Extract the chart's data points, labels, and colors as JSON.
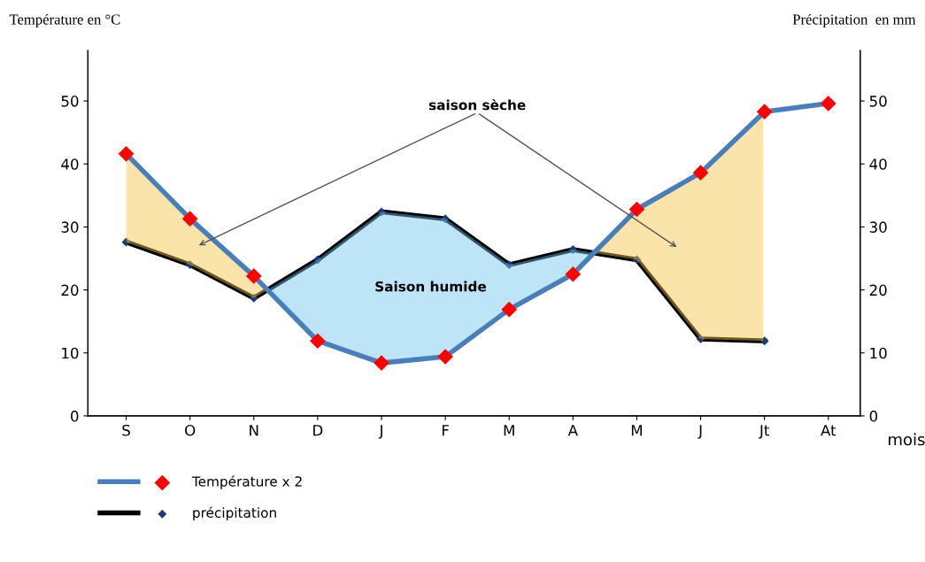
{
  "chart_data": {
    "type": "line",
    "categories": [
      "S",
      "O",
      "N",
      "D",
      "J",
      "F",
      "M",
      "A",
      "M",
      "J",
      "Jt",
      "At"
    ],
    "series": [
      {
        "name": "Température x 2",
        "color": "#4a7ebb",
        "colors": [
          "#ff0000",
          "#ff0000",
          "#ff0000",
          "#ff0000",
          "#ff0000",
          "#ff0000",
          "#ff0000",
          "#ff0000",
          "#ff0000",
          "#ff0000",
          "#ff0000",
          "#ff0000"
        ],
        "marker": "diamond",
        "values": [
          41.6,
          31.3,
          22.2,
          11.9,
          8.4,
          9.4,
          16.9,
          22.5,
          32.8,
          38.6,
          48.3,
          49.6
        ]
      },
      {
        "name": "précipitation",
        "color": "#000000",
        "colors": [
          "#1f3a6e",
          "#1f3a6e",
          "#1f3a6e",
          "#1f3a6e",
          "#1f3a6e",
          "#1f3a6e",
          "#1f3a6e",
          "#1f3a6e",
          "#1f3a6e",
          "#1f3a6e",
          "#1f3a6e",
          "#1f3a6e"
        ],
        "marker": "diamond",
        "axis": "y2",
        "values": [
          27.6,
          24.0,
          18.7,
          24.8,
          32.4,
          31.3,
          24.0,
          26.4,
          24.8,
          12.2,
          11.9,
          null
        ]
      }
    ],
    "ylabel": "Température en °C",
    "y2label": "Précipitation  en mm",
    "xlabel": "mois",
    "ylim": [
      0,
      58
    ],
    "yticks": [
      0,
      10,
      20,
      30,
      40,
      50
    ],
    "y2lim": [
      0,
      58
    ],
    "y2ticks": [
      0,
      10,
      20,
      30,
      40,
      50
    ],
    "annotations": [
      "saison sèche",
      "Saison humide"
    ],
    "grid": false,
    "legend": "bottom left"
  }
}
